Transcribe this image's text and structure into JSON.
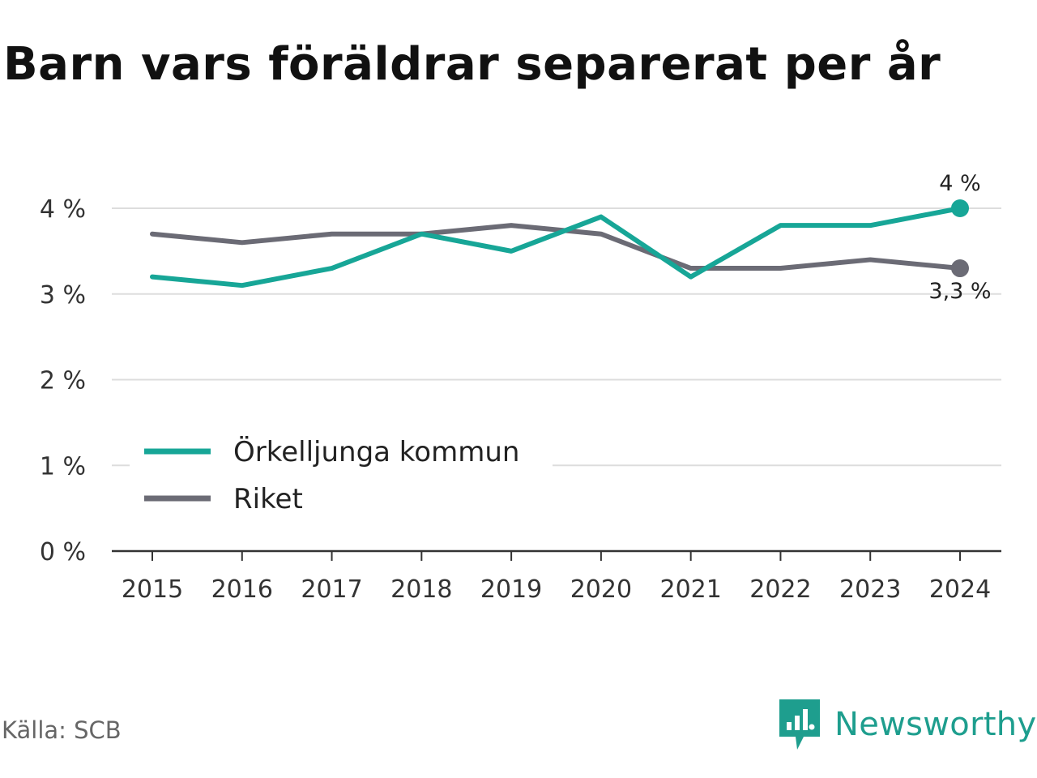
{
  "title": "Barn vars föräldrar separerat per år",
  "source": "Källa: SCB",
  "brand": "Newsworthy",
  "colors": {
    "kommun": "#17a697",
    "riket": "#6b6b75",
    "grid": "#dddddd",
    "brand": "#1e9e8e"
  },
  "chart_data": {
    "type": "line",
    "title": "Barn vars föräldrar separerat per år",
    "xlabel": "",
    "ylabel": "",
    "x": [
      "2015",
      "2016",
      "2017",
      "2018",
      "2019",
      "2020",
      "2021",
      "2022",
      "2023",
      "2024"
    ],
    "ylim": [
      0,
      4
    ],
    "yticks": [
      0,
      1,
      2,
      3,
      4
    ],
    "ytick_labels": [
      "0 %",
      "1 %",
      "2 %",
      "3 %",
      "4 %"
    ],
    "grid": true,
    "legend_position": "bottom-left",
    "series": [
      {
        "name": "Örkelljunga kommun",
        "color": "#17a697",
        "values": [
          3.2,
          3.1,
          3.3,
          3.7,
          3.5,
          3.9,
          3.2,
          3.8,
          3.8,
          4.0
        ],
        "end_label": "4 %"
      },
      {
        "name": "Riket",
        "color": "#6b6b75",
        "values": [
          3.7,
          3.6,
          3.7,
          3.7,
          3.8,
          3.7,
          3.3,
          3.3,
          3.4,
          3.3
        ],
        "end_label": "3,3 %"
      }
    ]
  }
}
